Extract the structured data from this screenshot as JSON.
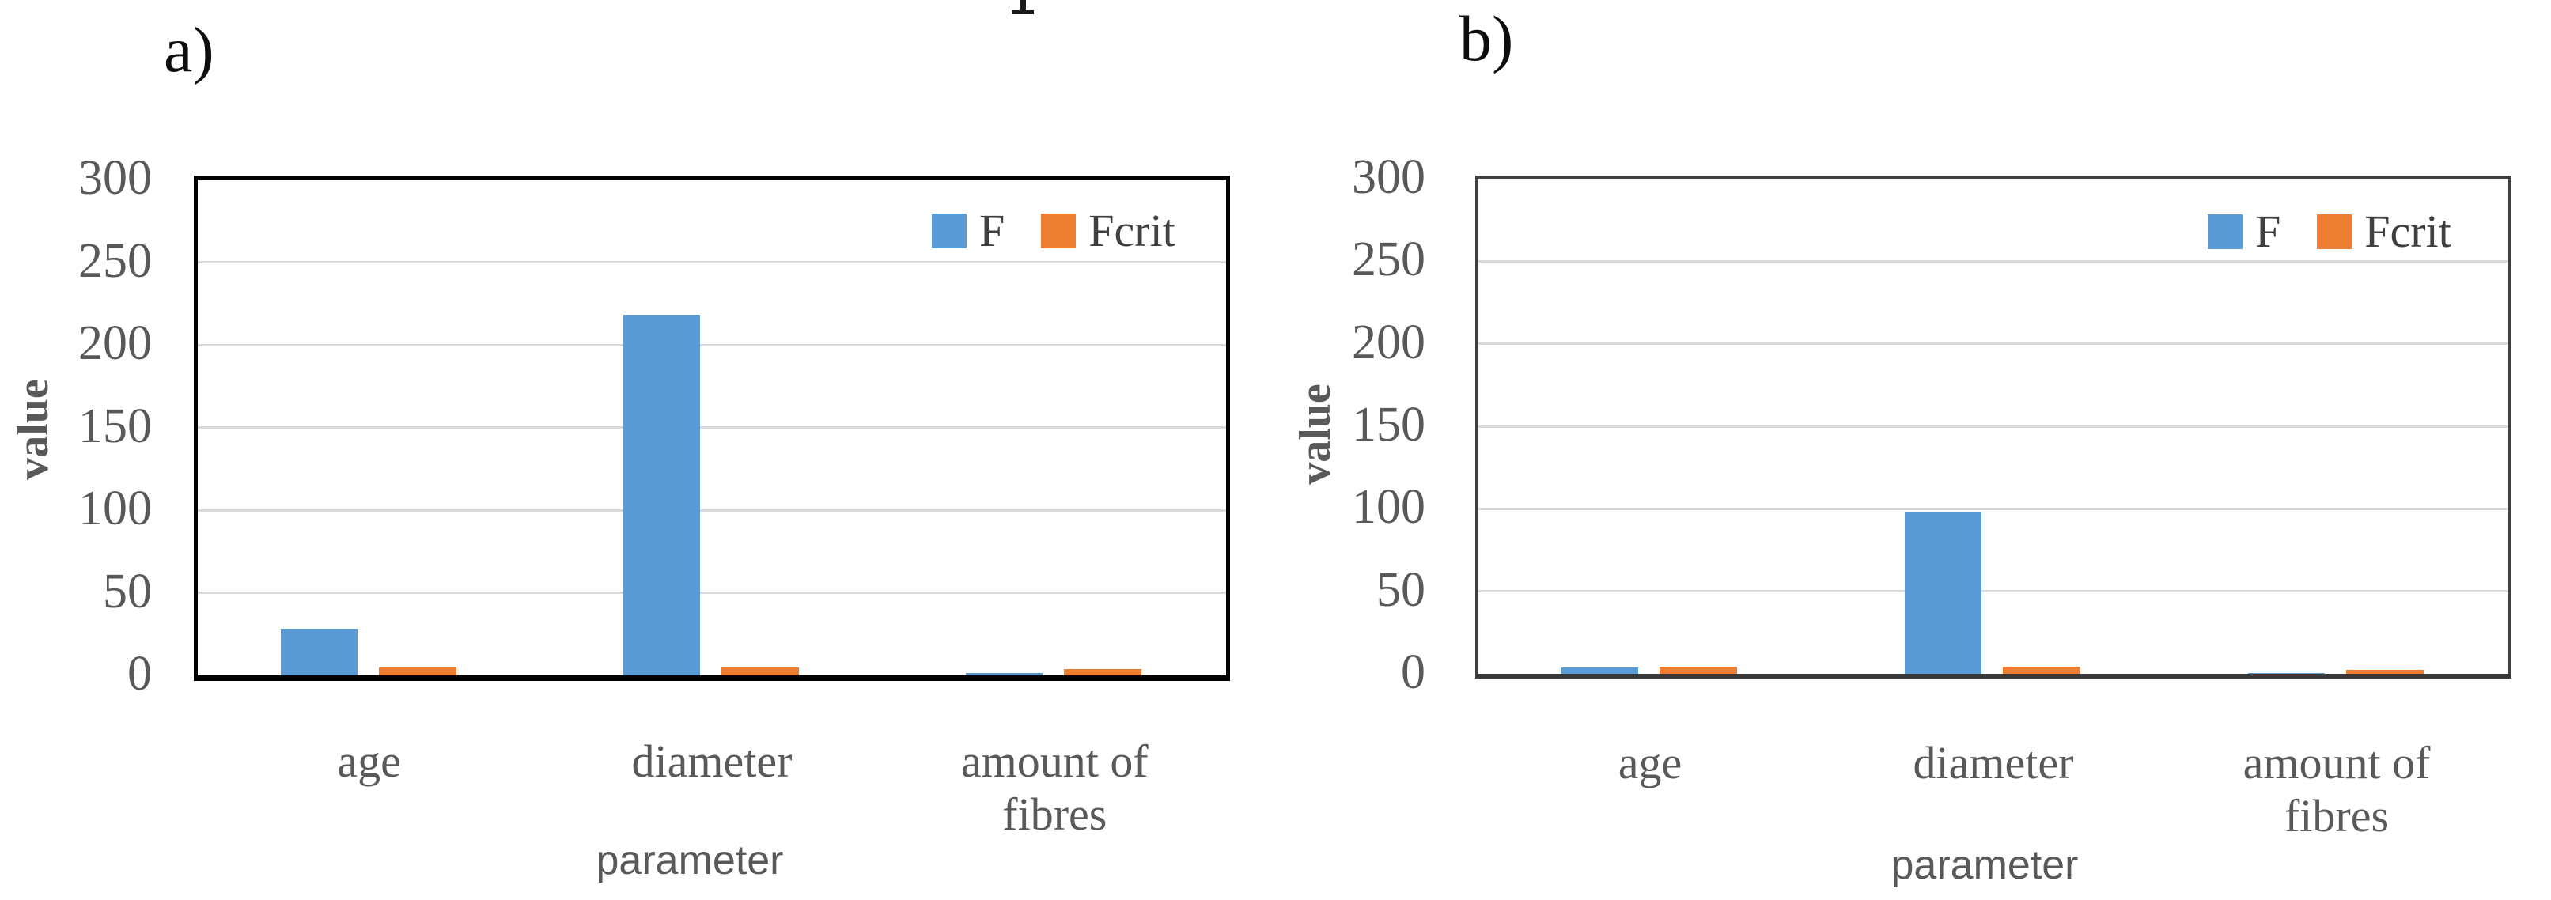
{
  "figure_caption_fragment": {
    "description": "partial letter descender cropped at top edge"
  },
  "colors": {
    "series_colors": [
      "#5B9BD5",
      "#ED7D31"
    ],
    "gridline": "#D9D9D9",
    "axis_text": "#595959",
    "panel_a_border": "#000000",
    "panel_b_border": "#404040"
  },
  "charts": [
    {
      "panel_label": "a)",
      "chart_data": {
        "type": "bar",
        "categories": [
          "age",
          "diameter",
          "amount of fibres"
        ],
        "series": [
          {
            "name": "F",
            "values": [
              28,
              218,
              1.5
            ]
          },
          {
            "name": "Fcrit",
            "values": [
              5,
              5,
              4
            ]
          }
        ],
        "title": "",
        "xlabel": "parameter",
        "ylabel": "value",
        "ylim": [
          0,
          300
        ],
        "ytick_step": 50,
        "yticks": [
          0,
          50,
          100,
          150,
          200,
          250,
          300
        ],
        "grid": true,
        "legend_position": "top-right"
      }
    },
    {
      "panel_label": "b)",
      "chart_data": {
        "type": "bar",
        "categories": [
          "age",
          "diameter",
          "amount of fibres"
        ],
        "series": [
          {
            "name": "F",
            "values": [
              4,
              98,
              0.3
            ]
          },
          {
            "name": "Fcrit",
            "values": [
              4.5,
              4.5,
              2.5
            ]
          }
        ],
        "title": "",
        "xlabel": "parameter",
        "ylabel": "value",
        "ylim": [
          0,
          300
        ],
        "ytick_step": 50,
        "yticks": [
          0,
          50,
          100,
          150,
          200,
          250,
          300
        ],
        "grid": true,
        "legend_position": "top-right"
      }
    }
  ]
}
